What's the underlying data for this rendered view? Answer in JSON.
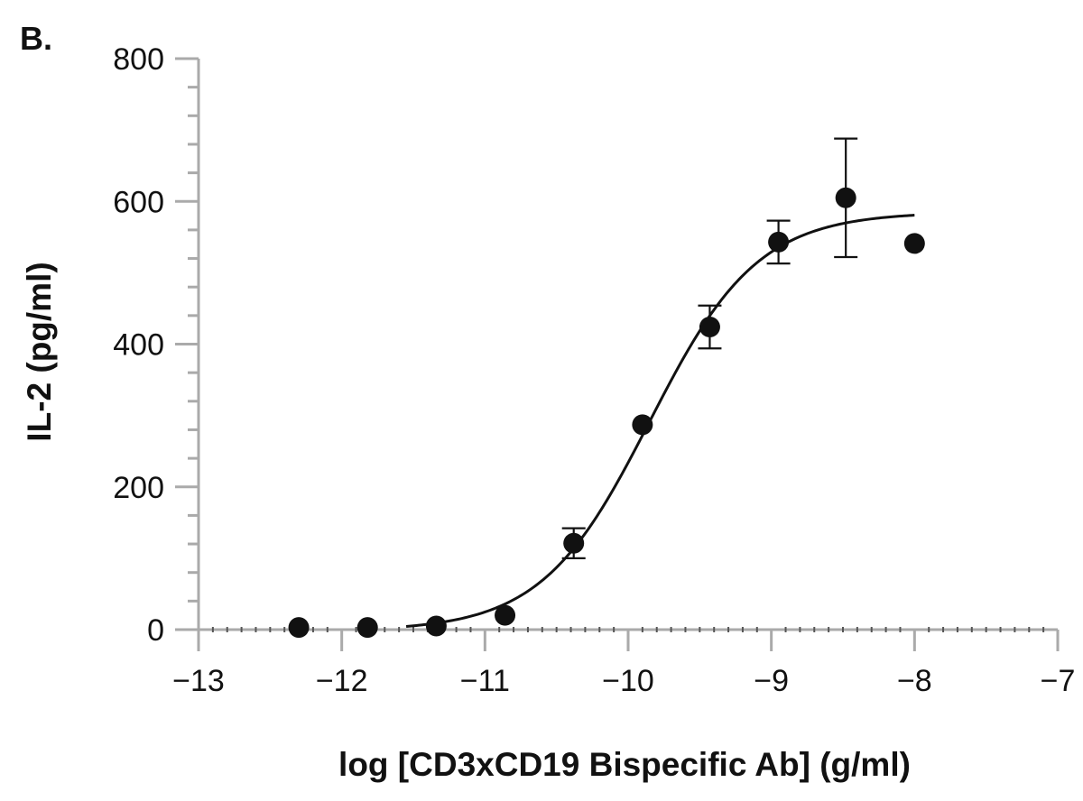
{
  "panel_label": "B.",
  "chart_data": {
    "type": "scatter",
    "xlabel": "log [CD3xCD19 Bispecific Ab] (g/ml)",
    "ylabel": "IL-2 (pg/ml)",
    "xlim": [
      -13,
      -7
    ],
    "ylim": [
      0,
      800
    ],
    "x_ticks": [
      -13,
      -12,
      -11,
      -10,
      -9,
      -8,
      -7
    ],
    "x_tick_labels": [
      "−13",
      "−12",
      "−11",
      "−10",
      "−9",
      "−8",
      "−7"
    ],
    "y_ticks": [
      0,
      200,
      400,
      600,
      800
    ],
    "y_tick_labels": [
      "0",
      "200",
      "400",
      "600",
      "800"
    ],
    "y_minor_step": 40,
    "x_minor_step": 0.1,
    "grid": false,
    "series": [
      {
        "points": [
          {
            "x": -12.3,
            "y": 3,
            "err": 0
          },
          {
            "x": -11.82,
            "y": 3,
            "err": 0
          },
          {
            "x": -11.34,
            "y": 5,
            "err": 0
          },
          {
            "x": -10.86,
            "y": 20,
            "err": 0
          },
          {
            "x": -10.38,
            "y": 121,
            "err": 21
          },
          {
            "x": -9.9,
            "y": 287,
            "err": 0
          },
          {
            "x": -9.43,
            "y": 424,
            "err": 30
          },
          {
            "x": -8.95,
            "y": 543,
            "err": 30
          },
          {
            "x": -8.48,
            "y": 605,
            "err": 83
          },
          {
            "x": -8.0,
            "y": 541,
            "err": 0
          }
        ]
      }
    ],
    "fit_curve": {
      "model": "four-parameter logistic",
      "bottom": -2,
      "top": 585,
      "log_ec50": -9.85,
      "hill_slope": 1.15,
      "x_range": [
        -11.55,
        -8.0
      ]
    },
    "colors": {
      "marker": "#111111",
      "curve": "#111111",
      "axis": "#aaaaaa"
    }
  }
}
